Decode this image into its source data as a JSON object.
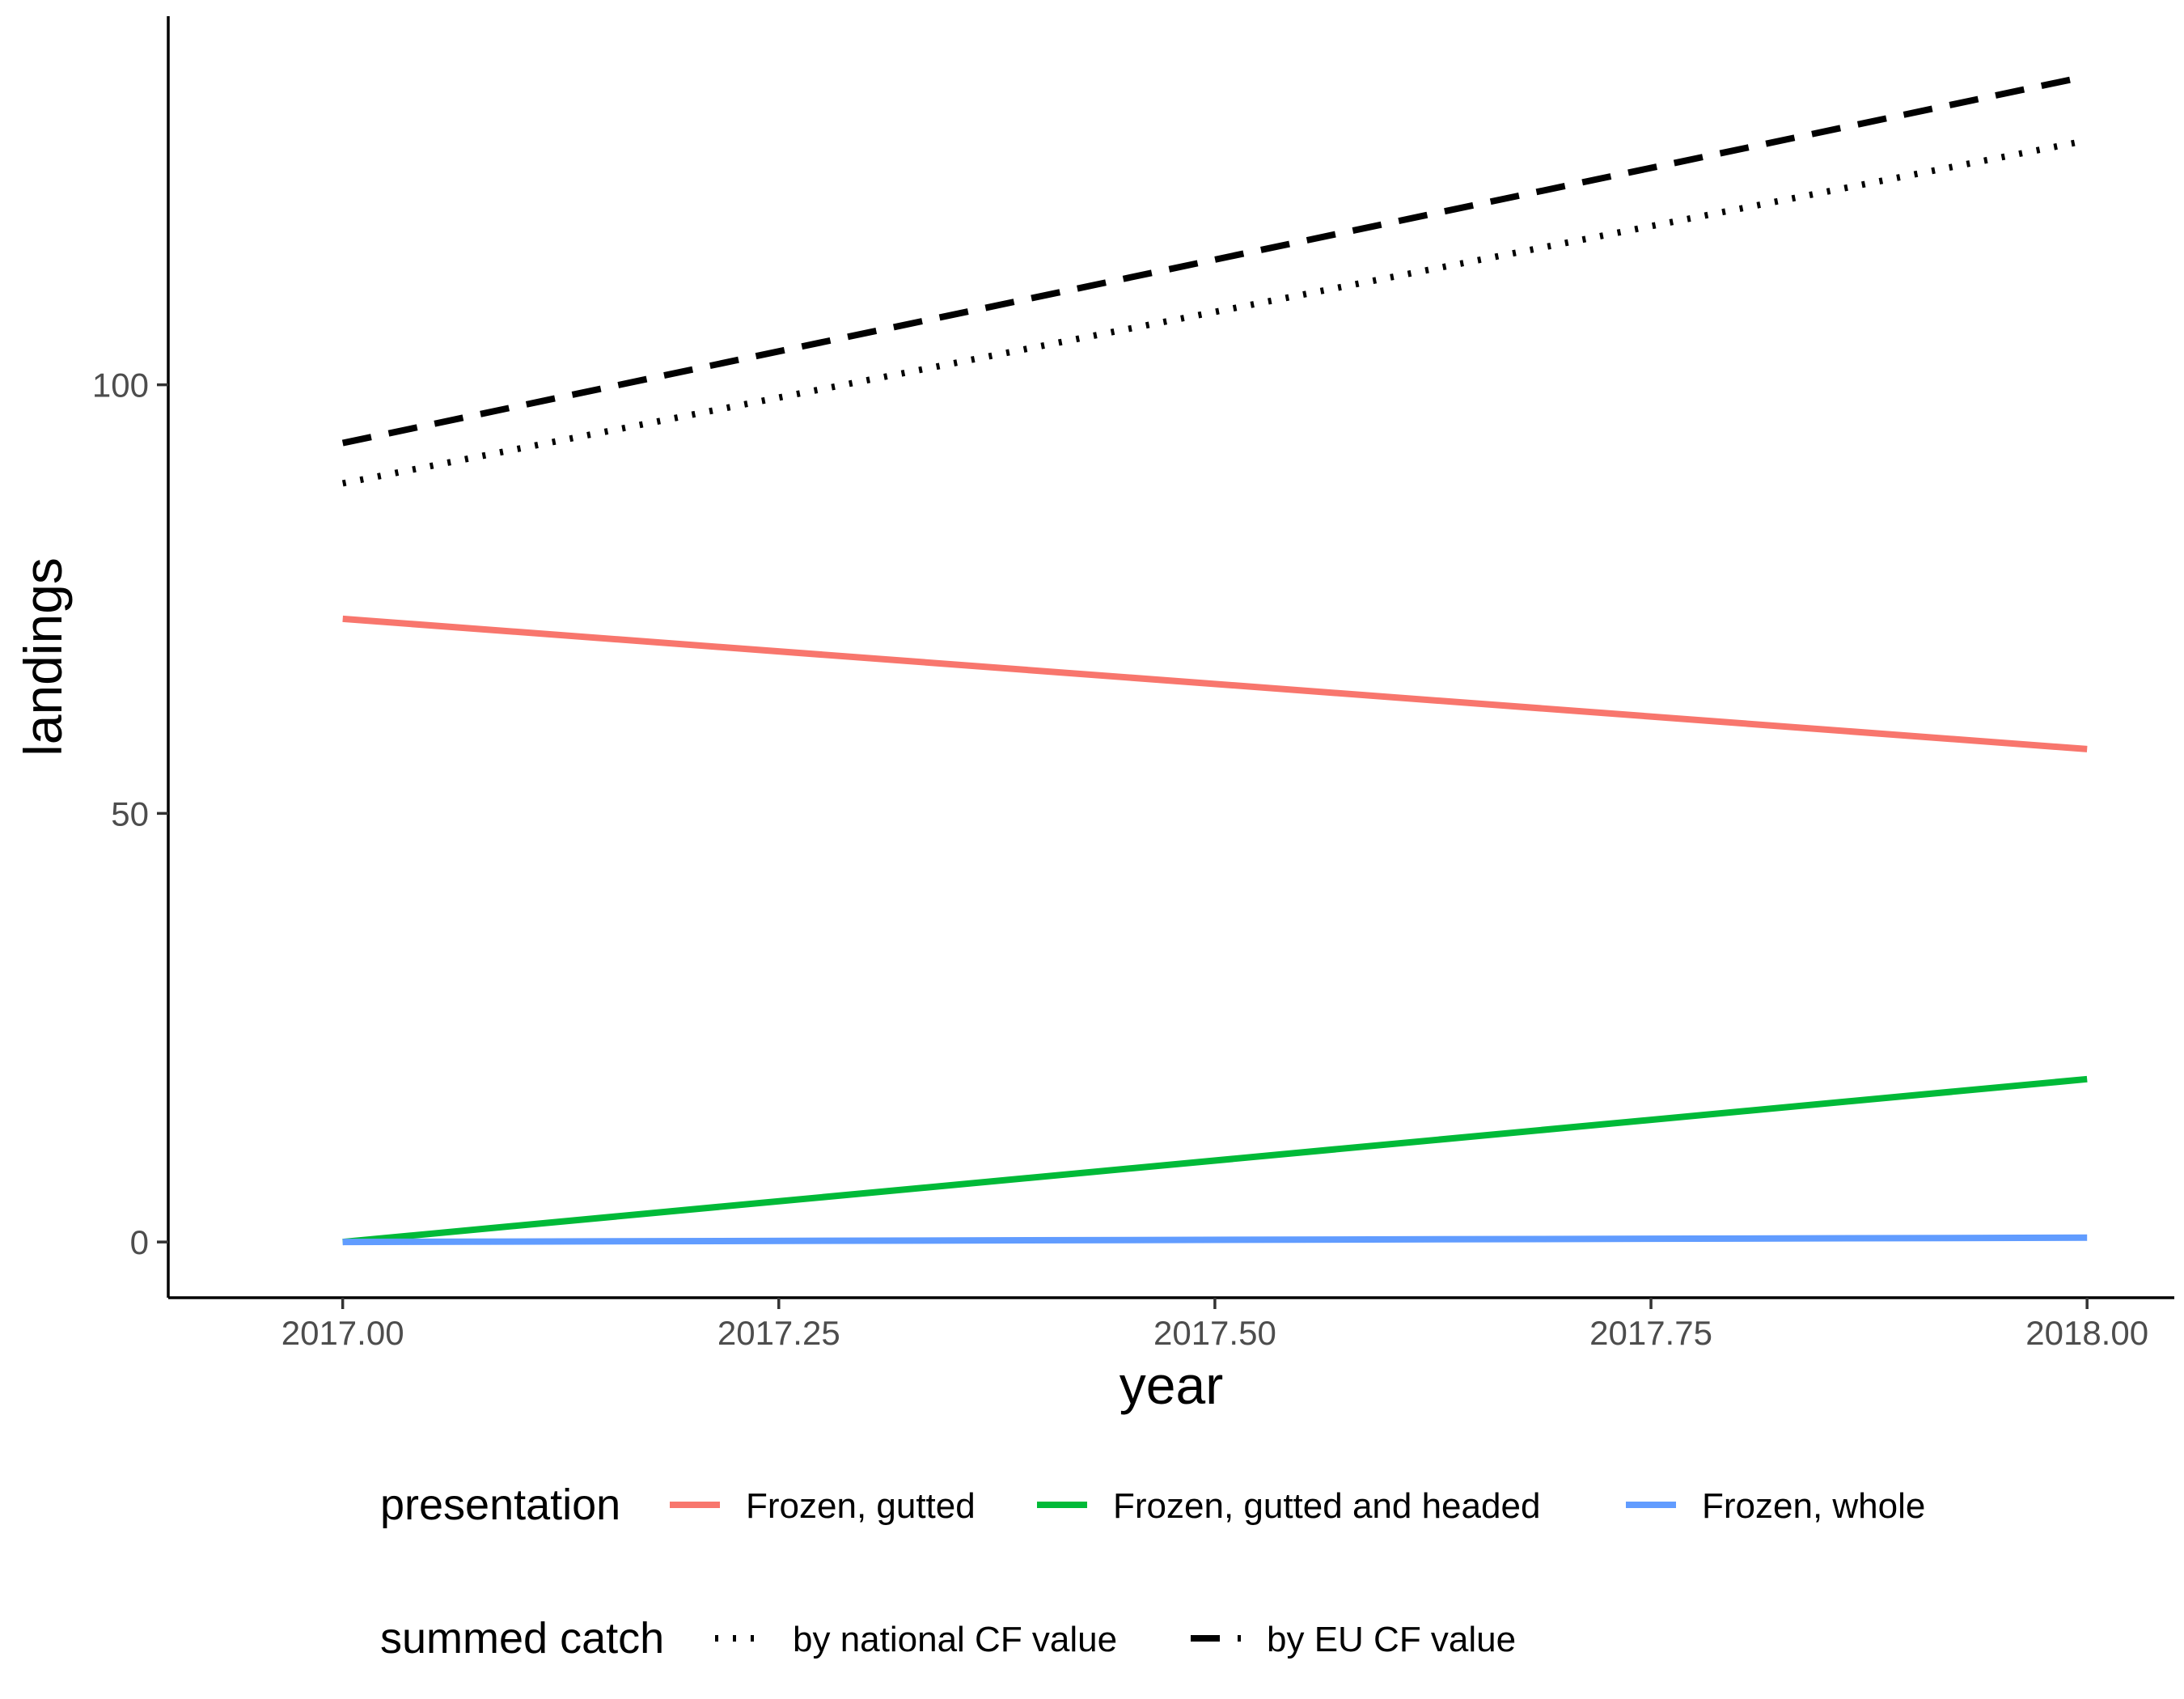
{
  "chart_data": {
    "type": "line",
    "xlabel": "year",
    "ylabel": "landings",
    "xlim": [
      2016.9,
      2018.05
    ],
    "ylim": [
      -6.5,
      143
    ],
    "x_ticks": [
      "2017.00",
      "2017.25",
      "2017.50",
      "2017.75",
      "2018.00"
    ],
    "y_ticks": [
      "0",
      "50",
      "100"
    ],
    "grid": false,
    "legend_position": "bottom",
    "series": [
      {
        "name": "Frozen, gutted",
        "group": "presentation",
        "color": "#F8766D",
        "linetype": "solid",
        "x": [
          2017,
          2018
        ],
        "y": [
          72.7,
          57.5
        ]
      },
      {
        "name": "Frozen, gutted and headed",
        "group": "presentation",
        "color": "#00BA38",
        "linetype": "solid",
        "x": [
          2017,
          2018
        ],
        "y": [
          0,
          19
        ]
      },
      {
        "name": "Frozen, whole",
        "group": "presentation",
        "color": "#619CFF",
        "linetype": "solid",
        "x": [
          2017,
          2018
        ],
        "y": [
          0,
          0.5
        ]
      },
      {
        "name": "by national CF value",
        "group": "summed catch",
        "color": "#000000",
        "linetype": "dotted",
        "x": [
          2017,
          2018
        ],
        "y": [
          88.5,
          128.5
        ]
      },
      {
        "name": "by EU CF value",
        "group": "summed catch",
        "color": "#000000",
        "linetype": "dashed",
        "x": [
          2017,
          2018
        ],
        "y": [
          93.2,
          136
        ]
      }
    ],
    "legends": [
      {
        "title": "presentation",
        "entries": [
          "Frozen, gutted",
          "Frozen, gutted and headed",
          "Frozen, whole"
        ]
      },
      {
        "title": "summed catch",
        "entries": [
          "by national CF value",
          "by EU CF value"
        ]
      }
    ]
  }
}
